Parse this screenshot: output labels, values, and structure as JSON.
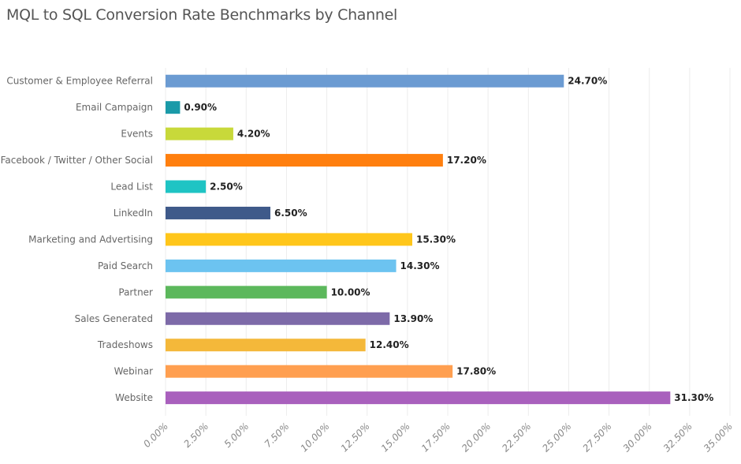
{
  "chart_data": {
    "type": "bar",
    "orientation": "horizontal",
    "title": "MQL to SQL Conversion Rate Benchmarks by Channel",
    "categories": [
      "Customer & Employee Referral",
      "Email Campaign",
      "Events",
      "Facebook / Twitter / Other Social",
      "Lead List",
      "LinkedIn",
      "Marketing and Advertising",
      "Paid Search",
      "Partner",
      "Sales Generated",
      "Tradeshows",
      "Webinar",
      "Website"
    ],
    "values": [
      24.7,
      0.9,
      4.2,
      17.2,
      2.5,
      6.5,
      15.3,
      14.3,
      10.0,
      13.9,
      12.4,
      17.8,
      31.3
    ],
    "data_labels": [
      "24.70%",
      "0.90%",
      "4.20%",
      "17.20%",
      "2.50%",
      "6.50%",
      "15.30%",
      "14.30%",
      "10.00%",
      "13.90%",
      "12.40%",
      "17.80%",
      "31.30%"
    ],
    "colors": [
      "#6b9bd2",
      "#1a9aa8",
      "#c8d93a",
      "#ff7f0e",
      "#1fc4c4",
      "#3f5a8a",
      "#ffc61a",
      "#6cc3f0",
      "#5cb85c",
      "#7d6aa8",
      "#f4b83a",
      "#ff9f50",
      "#a960bd"
    ],
    "xlim": [
      0,
      35
    ],
    "xticks": [
      "0.00%",
      "2.50%",
      "5.00%",
      "7.50%",
      "10.00%",
      "12.50%",
      "15.00%",
      "17.50%",
      "20.00%",
      "22.50%",
      "25.00%",
      "27.50%",
      "30.00%",
      "32.50%",
      "35.00%"
    ],
    "xlabel": "",
    "ylabel": "",
    "grid": true,
    "legend": "none"
  }
}
